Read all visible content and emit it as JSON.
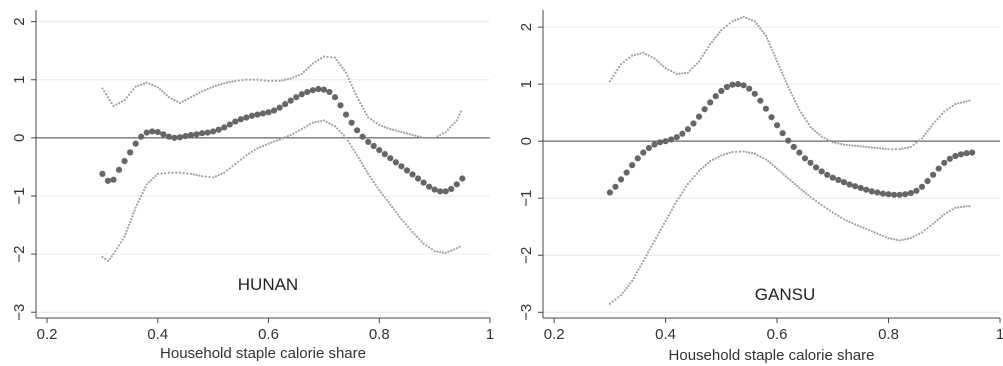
{
  "chart_data": [
    {
      "type": "line",
      "panel_label": "HUNAN",
      "xlabel": "Household staple calorie share",
      "ylabel": "",
      "xlim": [
        0.18,
        1.0
      ],
      "ylim": [
        -3.1,
        2.2
      ],
      "x_ticks": [
        0.2,
        0.4,
        0.6,
        0.8,
        1
      ],
      "x_tick_labels": [
        "0.2",
        "0.4",
        "0.6",
        "0.8",
        "1"
      ],
      "y_ticks": [
        -3,
        -2,
        -1,
        0,
        1,
        2
      ],
      "y_tick_labels": [
        "−3",
        "−2",
        "−1",
        "0",
        "1",
        "2"
      ],
      "grid": true,
      "reference_line_y": 0,
      "series": [
        {
          "style": "dotted",
          "color": "#a0a0a0",
          "x": [
            0.3,
            0.32,
            0.34,
            0.36,
            0.38,
            0.4,
            0.42,
            0.44,
            0.46,
            0.48,
            0.5,
            0.52,
            0.54,
            0.56,
            0.58,
            0.6,
            0.62,
            0.64,
            0.66,
            0.68,
            0.7,
            0.72,
            0.74,
            0.76,
            0.78,
            0.8,
            0.82,
            0.84,
            0.86,
            0.88,
            0.9,
            0.92,
            0.94,
            0.95
          ],
          "values": [
            0.85,
            0.55,
            0.65,
            0.88,
            0.95,
            0.87,
            0.7,
            0.6,
            0.7,
            0.8,
            0.88,
            0.94,
            0.98,
            1.0,
            1.0,
            0.98,
            0.98,
            1.02,
            1.1,
            1.28,
            1.4,
            1.38,
            1.12,
            0.7,
            0.35,
            0.22,
            0.15,
            0.1,
            0.05,
            0.0,
            0.0,
            0.1,
            0.3,
            0.5
          ]
        },
        {
          "style": "dots",
          "color": "#666666",
          "x": [
            0.3,
            0.31,
            0.32,
            0.33,
            0.34,
            0.35,
            0.36,
            0.37,
            0.38,
            0.39,
            0.4,
            0.41,
            0.42,
            0.43,
            0.44,
            0.45,
            0.46,
            0.47,
            0.48,
            0.49,
            0.5,
            0.51,
            0.52,
            0.53,
            0.54,
            0.55,
            0.56,
            0.57,
            0.58,
            0.59,
            0.6,
            0.61,
            0.62,
            0.63,
            0.64,
            0.65,
            0.66,
            0.67,
            0.68,
            0.69,
            0.7,
            0.71,
            0.72,
            0.73,
            0.74,
            0.75,
            0.76,
            0.77,
            0.78,
            0.79,
            0.8,
            0.81,
            0.82,
            0.83,
            0.84,
            0.85,
            0.86,
            0.87,
            0.88,
            0.89,
            0.9,
            0.91,
            0.92,
            0.93,
            0.94,
            0.95
          ],
          "values": [
            -0.62,
            -0.74,
            -0.72,
            -0.55,
            -0.4,
            -0.25,
            -0.1,
            0.02,
            0.09,
            0.11,
            0.1,
            0.06,
            0.02,
            0.0,
            0.01,
            0.03,
            0.05,
            0.06,
            0.08,
            0.09,
            0.11,
            0.14,
            0.18,
            0.23,
            0.28,
            0.32,
            0.35,
            0.38,
            0.4,
            0.42,
            0.44,
            0.47,
            0.52,
            0.58,
            0.64,
            0.7,
            0.75,
            0.79,
            0.82,
            0.84,
            0.83,
            0.79,
            0.7,
            0.56,
            0.4,
            0.26,
            0.13,
            0.02,
            -0.07,
            -0.14,
            -0.21,
            -0.28,
            -0.35,
            -0.42,
            -0.49,
            -0.56,
            -0.63,
            -0.7,
            -0.77,
            -0.84,
            -0.89,
            -0.92,
            -0.92,
            -0.88,
            -0.8,
            -0.7
          ]
        },
        {
          "style": "dotted",
          "color": "#a0a0a0",
          "x": [
            0.3,
            0.31,
            0.32,
            0.34,
            0.36,
            0.38,
            0.4,
            0.42,
            0.44,
            0.46,
            0.48,
            0.5,
            0.52,
            0.54,
            0.56,
            0.58,
            0.6,
            0.62,
            0.64,
            0.66,
            0.68,
            0.7,
            0.72,
            0.74,
            0.76,
            0.78,
            0.8,
            0.82,
            0.84,
            0.86,
            0.88,
            0.9,
            0.92,
            0.94,
            0.95
          ],
          "values": [
            -2.05,
            -2.12,
            -2.0,
            -1.7,
            -1.2,
            -0.8,
            -0.62,
            -0.6,
            -0.6,
            -0.62,
            -0.66,
            -0.68,
            -0.6,
            -0.45,
            -0.3,
            -0.18,
            -0.1,
            -0.03,
            0.05,
            0.15,
            0.26,
            0.3,
            0.2,
            0.0,
            -0.3,
            -0.62,
            -0.9,
            -1.15,
            -1.4,
            -1.62,
            -1.82,
            -1.95,
            -1.98,
            -1.9,
            -1.85
          ]
        }
      ]
    },
    {
      "type": "line",
      "panel_label": "GANSU",
      "xlabel": "Household staple calorie share",
      "ylabel": "",
      "xlim": [
        0.18,
        1.0
      ],
      "ylim": [
        -3.1,
        2.3
      ],
      "x_ticks": [
        0.2,
        0.4,
        0.6,
        0.8,
        1
      ],
      "x_tick_labels": [
        "0.2",
        "0.4",
        "0.6",
        "0.8",
        "1"
      ],
      "y_ticks": [
        -3,
        -2,
        -1,
        0,
        1,
        2
      ],
      "y_tick_labels": [
        "−3",
        "−2",
        "−1",
        "0",
        "1",
        "2"
      ],
      "grid": true,
      "reference_line_y": 0,
      "series": [
        {
          "style": "dotted",
          "color": "#a0a0a0",
          "x": [
            0.3,
            0.32,
            0.34,
            0.36,
            0.38,
            0.4,
            0.42,
            0.44,
            0.46,
            0.48,
            0.5,
            0.52,
            0.54,
            0.56,
            0.58,
            0.6,
            0.62,
            0.64,
            0.66,
            0.68,
            0.7,
            0.72,
            0.74,
            0.76,
            0.78,
            0.8,
            0.82,
            0.84,
            0.86,
            0.88,
            0.9,
            0.92,
            0.94,
            0.95
          ],
          "values": [
            1.05,
            1.35,
            1.5,
            1.55,
            1.45,
            1.28,
            1.18,
            1.2,
            1.4,
            1.7,
            1.95,
            2.1,
            2.18,
            2.1,
            1.85,
            1.4,
            0.95,
            0.55,
            0.25,
            0.08,
            -0.02,
            -0.06,
            -0.08,
            -0.1,
            -0.12,
            -0.14,
            -0.14,
            -0.1,
            0.05,
            0.3,
            0.52,
            0.65,
            0.7,
            0.72
          ]
        },
        {
          "style": "dots",
          "color": "#666666",
          "x": [
            0.3,
            0.31,
            0.32,
            0.33,
            0.34,
            0.35,
            0.36,
            0.37,
            0.38,
            0.39,
            0.4,
            0.41,
            0.42,
            0.43,
            0.44,
            0.45,
            0.46,
            0.47,
            0.48,
            0.49,
            0.5,
            0.51,
            0.52,
            0.53,
            0.54,
            0.55,
            0.56,
            0.57,
            0.58,
            0.59,
            0.6,
            0.61,
            0.62,
            0.63,
            0.64,
            0.65,
            0.66,
            0.67,
            0.68,
            0.69,
            0.7,
            0.71,
            0.72,
            0.73,
            0.74,
            0.75,
            0.76,
            0.77,
            0.78,
            0.79,
            0.8,
            0.81,
            0.82,
            0.83,
            0.84,
            0.85,
            0.86,
            0.87,
            0.88,
            0.89,
            0.9,
            0.91,
            0.92,
            0.93,
            0.94,
            0.95
          ],
          "values": [
            -0.9,
            -0.8,
            -0.67,
            -0.55,
            -0.42,
            -0.3,
            -0.2,
            -0.12,
            -0.06,
            -0.02,
            0.0,
            0.03,
            0.07,
            0.13,
            0.21,
            0.31,
            0.43,
            0.56,
            0.68,
            0.79,
            0.88,
            0.95,
            0.99,
            1.0,
            0.98,
            0.92,
            0.83,
            0.71,
            0.57,
            0.42,
            0.28,
            0.14,
            0.01,
            -0.1,
            -0.2,
            -0.3,
            -0.38,
            -0.46,
            -0.53,
            -0.59,
            -0.64,
            -0.68,
            -0.72,
            -0.76,
            -0.79,
            -0.82,
            -0.85,
            -0.88,
            -0.9,
            -0.92,
            -0.93,
            -0.94,
            -0.94,
            -0.93,
            -0.91,
            -0.87,
            -0.8,
            -0.7,
            -0.59,
            -0.48,
            -0.38,
            -0.31,
            -0.26,
            -0.23,
            -0.21,
            -0.2
          ]
        },
        {
          "style": "dotted",
          "color": "#a0a0a0",
          "x": [
            0.3,
            0.32,
            0.34,
            0.36,
            0.38,
            0.4,
            0.42,
            0.44,
            0.46,
            0.48,
            0.5,
            0.52,
            0.54,
            0.56,
            0.58,
            0.6,
            0.62,
            0.64,
            0.66,
            0.68,
            0.7,
            0.72,
            0.74,
            0.76,
            0.78,
            0.8,
            0.82,
            0.84,
            0.86,
            0.88,
            0.9,
            0.92,
            0.94,
            0.95
          ],
          "values": [
            -2.85,
            -2.7,
            -2.45,
            -2.1,
            -1.75,
            -1.4,
            -1.05,
            -0.75,
            -0.52,
            -0.35,
            -0.25,
            -0.19,
            -0.18,
            -0.22,
            -0.32,
            -0.48,
            -0.65,
            -0.82,
            -0.98,
            -1.12,
            -1.25,
            -1.37,
            -1.46,
            -1.54,
            -1.62,
            -1.7,
            -1.74,
            -1.7,
            -1.6,
            -1.45,
            -1.28,
            -1.17,
            -1.14,
            -1.14
          ]
        }
      ]
    }
  ]
}
